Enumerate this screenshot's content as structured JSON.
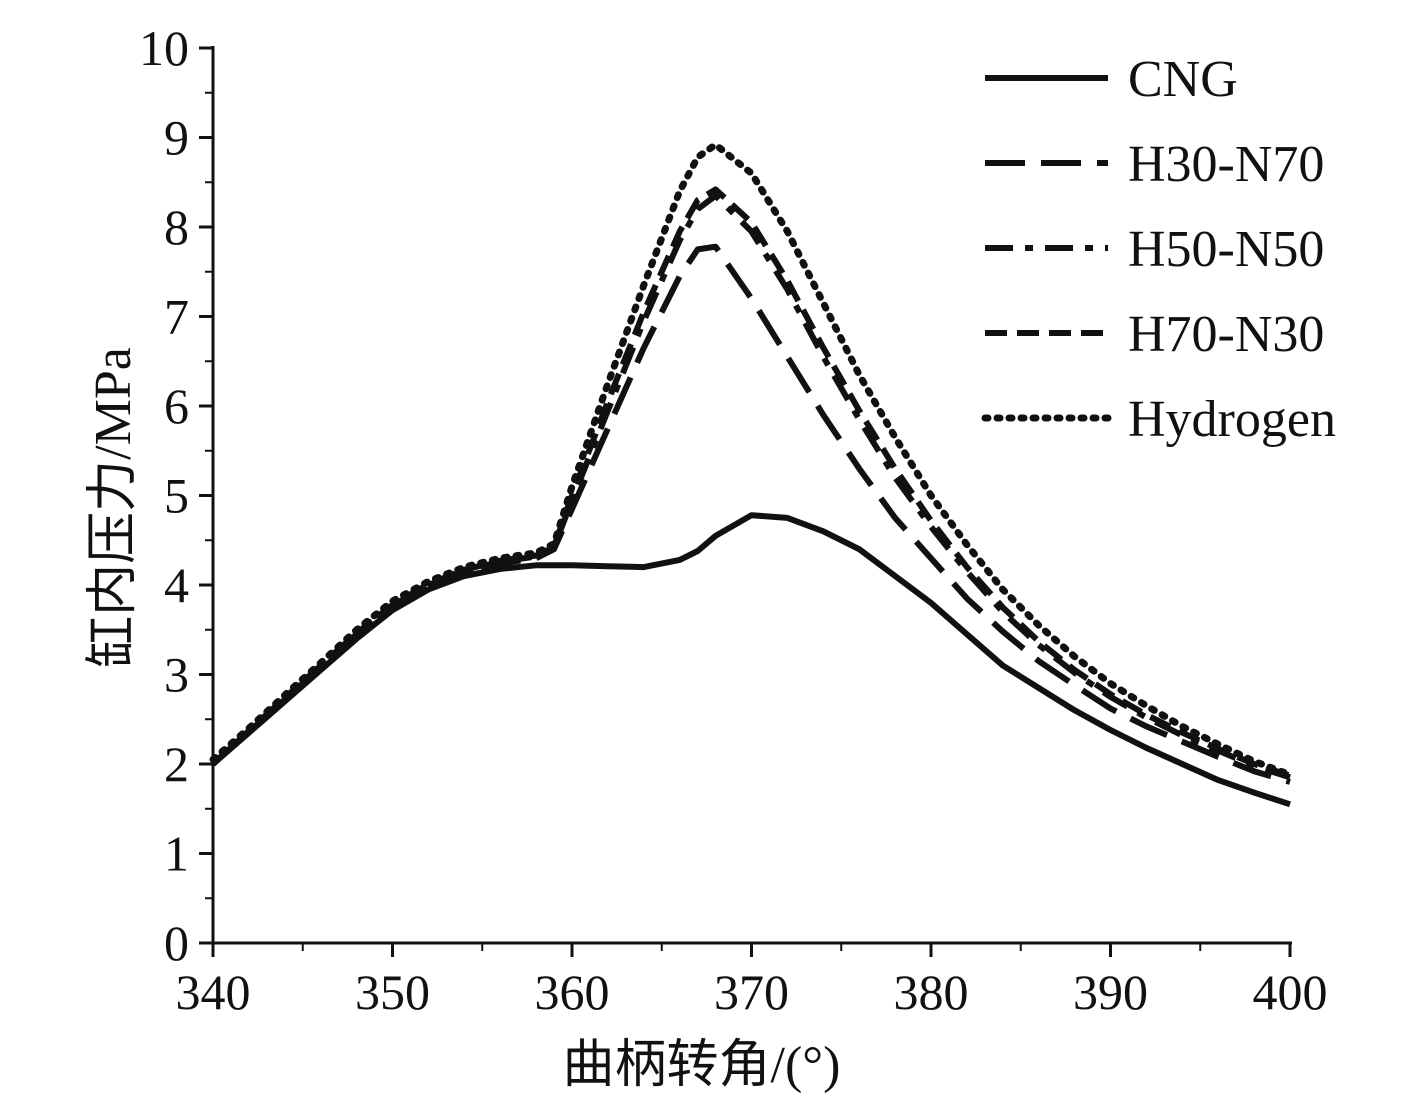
{
  "chart_data": {
    "type": "line",
    "title": "",
    "xlabel": "曲柄转角/(°)",
    "ylabel": "缸内压力/MPa",
    "xlim": [
      340,
      400
    ],
    "ylim": [
      0,
      10
    ],
    "xticks": [
      340,
      350,
      360,
      370,
      380,
      390,
      400
    ],
    "yticks": [
      0,
      1,
      2,
      3,
      4,
      5,
      6,
      7,
      8,
      9,
      10
    ],
    "grid": false,
    "legend_position": "top-right",
    "series": [
      {
        "name": "CNG",
        "style": "solid",
        "color": "#111111",
        "x": [
          340,
          342,
          344,
          346,
          348,
          350,
          352,
          354,
          356,
          358,
          360,
          362,
          364,
          366,
          367,
          368,
          370,
          372,
          374,
          376,
          378,
          380,
          382,
          384,
          386,
          388,
          390,
          392,
          394,
          396,
          398,
          400
        ],
        "y": [
          2.0,
          2.35,
          2.7,
          3.05,
          3.4,
          3.72,
          3.95,
          4.1,
          4.18,
          4.22,
          4.22,
          4.21,
          4.2,
          4.28,
          4.38,
          4.55,
          4.78,
          4.75,
          4.6,
          4.4,
          4.1,
          3.8,
          3.45,
          3.1,
          2.85,
          2.6,
          2.38,
          2.18,
          2.0,
          1.82,
          1.68,
          1.55
        ]
      },
      {
        "name": "H30-N70",
        "style": "longdash",
        "color": "#111111",
        "x": [
          340,
          342,
          344,
          346,
          348,
          350,
          352,
          354,
          356,
          358,
          359,
          360,
          362,
          364,
          366,
          367,
          368,
          370,
          372,
          374,
          376,
          378,
          380,
          382,
          384,
          386,
          388,
          390,
          392,
          394,
          396,
          398,
          400
        ],
        "y": [
          2.0,
          2.36,
          2.72,
          3.08,
          3.44,
          3.76,
          3.99,
          4.14,
          4.24,
          4.3,
          4.4,
          4.85,
          5.75,
          6.65,
          7.45,
          7.75,
          7.78,
          7.2,
          6.55,
          5.9,
          5.3,
          4.75,
          4.3,
          3.85,
          3.48,
          3.15,
          2.88,
          2.62,
          2.42,
          2.25,
          2.08,
          1.92,
          1.8
        ]
      },
      {
        "name": "H50-N50",
        "style": "dashdot",
        "color": "#111111",
        "x": [
          340,
          342,
          344,
          346,
          348,
          350,
          352,
          354,
          356,
          358,
          359,
          360,
          362,
          364,
          366,
          367,
          368,
          370,
          372,
          374,
          376,
          378,
          380,
          382,
          384,
          386,
          388,
          390,
          392,
          394,
          396,
          398,
          400
        ],
        "y": [
          2.0,
          2.37,
          2.73,
          3.09,
          3.45,
          3.77,
          4.0,
          4.16,
          4.26,
          4.32,
          4.42,
          4.95,
          5.95,
          6.95,
          7.85,
          8.2,
          8.35,
          7.95,
          7.3,
          6.55,
          5.85,
          5.2,
          4.65,
          4.15,
          3.7,
          3.33,
          3.02,
          2.75,
          2.52,
          2.32,
          2.15,
          1.98,
          1.85
        ]
      },
      {
        "name": "H70-N30",
        "style": "dash",
        "color": "#111111",
        "x": [
          340,
          342,
          344,
          346,
          348,
          350,
          352,
          354,
          356,
          358,
          359,
          360,
          362,
          364,
          366,
          367,
          368,
          370,
          372,
          374,
          376,
          378,
          380,
          382,
          384,
          386,
          388,
          390,
          392,
          394,
          396,
          398,
          400
        ],
        "y": [
          2.0,
          2.37,
          2.74,
          3.1,
          3.46,
          3.78,
          4.01,
          4.17,
          4.27,
          4.33,
          4.43,
          5.0,
          6.05,
          7.05,
          7.95,
          8.3,
          8.42,
          8.05,
          7.4,
          6.65,
          5.95,
          5.3,
          4.72,
          4.2,
          3.75,
          3.37,
          3.05,
          2.78,
          2.55,
          2.35,
          2.17,
          2.0,
          1.87
        ]
      },
      {
        "name": "Hydrogen",
        "style": "dotted",
        "color": "#111111",
        "x": [
          340,
          342,
          344,
          346,
          348,
          350,
          352,
          354,
          356,
          358,
          359,
          360,
          362,
          364,
          366,
          367,
          368,
          370,
          372,
          374,
          376,
          378,
          380,
          382,
          384,
          386,
          388,
          390,
          392,
          394,
          396,
          398,
          400
        ],
        "y": [
          2.05,
          2.4,
          2.77,
          3.13,
          3.5,
          3.82,
          4.04,
          4.2,
          4.3,
          4.36,
          4.46,
          5.1,
          6.25,
          7.35,
          8.4,
          8.78,
          8.92,
          8.6,
          7.95,
          7.15,
          6.35,
          5.65,
          5.0,
          4.45,
          3.95,
          3.55,
          3.2,
          2.9,
          2.65,
          2.42,
          2.22,
          2.03,
          1.88
        ]
      }
    ]
  }
}
